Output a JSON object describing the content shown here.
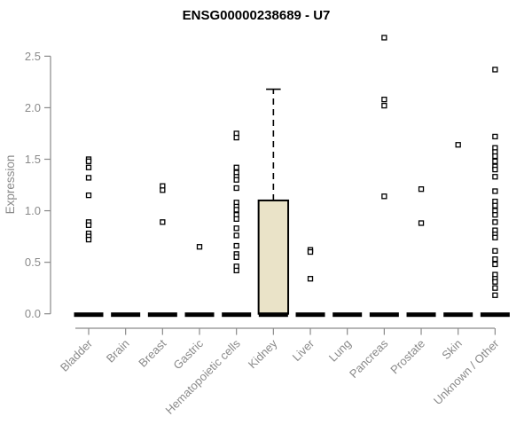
{
  "chart_data": {
    "type": "boxplot",
    "title": "ENSG00000238689 - U7",
    "ylabel": "Expression",
    "xlabel": "",
    "grid": false,
    "legend": null,
    "ylim": [
      0,
      2.72
    ],
    "yticks": [
      {
        "value": 0.0,
        "label": "0.0"
      },
      {
        "value": 0.5,
        "label": "0.5"
      },
      {
        "value": 1.0,
        "label": "1.0"
      },
      {
        "value": 1.5,
        "label": "1.5"
      },
      {
        "value": 2.0,
        "label": "2.0"
      },
      {
        "value": 2.5,
        "label": "2.5"
      }
    ],
    "categories": [
      "Bladder",
      "Brain",
      "Breast",
      "Gastric",
      "Hematopoietic cells",
      "Kidney",
      "Liver",
      "Lung",
      "Pancreas",
      "Prostate",
      "Skin",
      "Unknown / Other"
    ],
    "series": [
      {
        "name": "Bladder",
        "median": 0,
        "q1": 0,
        "q3": 0,
        "whisker_high": 0,
        "points": [
          1.5,
          1.48,
          1.42,
          1.32,
          1.15,
          0.89,
          0.86,
          0.78,
          0.75,
          0.72
        ]
      },
      {
        "name": "Brain",
        "median": 0,
        "q1": 0,
        "q3": 0,
        "whisker_high": 0,
        "points": []
      },
      {
        "name": "Breast",
        "median": 0,
        "q1": 0,
        "q3": 0,
        "whisker_high": 0,
        "points": [
          1.24,
          1.2,
          0.89
        ]
      },
      {
        "name": "Gastric",
        "median": 0,
        "q1": 0,
        "q3": 0,
        "whisker_high": 0,
        "points": [
          0.65
        ]
      },
      {
        "name": "Hematopoietic cells",
        "median": 0,
        "q1": 0,
        "q3": 0,
        "whisker_high": 0,
        "points": [
          1.75,
          1.71,
          1.42,
          1.37,
          1.33,
          1.3,
          1.22,
          1.08,
          1.04,
          1.01,
          0.96,
          0.92,
          0.83,
          0.76,
          0.66,
          0.58,
          0.55,
          0.46,
          0.42
        ]
      },
      {
        "name": "Kidney",
        "median": 0,
        "q1": 0,
        "q3": 1.1,
        "whisker_high": 2.18,
        "points": []
      },
      {
        "name": "Liver",
        "median": 0,
        "q1": 0,
        "q3": 0,
        "whisker_high": 0,
        "points": [
          0.62,
          0.6,
          0.34
        ]
      },
      {
        "name": "Lung",
        "median": 0,
        "q1": 0,
        "q3": 0,
        "whisker_high": 0,
        "points": []
      },
      {
        "name": "Pancreas",
        "median": 0,
        "q1": 0,
        "q3": 0,
        "whisker_high": 0,
        "points": [
          2.68,
          2.08,
          2.02,
          1.14
        ]
      },
      {
        "name": "Prostate",
        "median": 0,
        "q1": 0,
        "q3": 0,
        "whisker_high": 0,
        "points": [
          1.21,
          0.88
        ]
      },
      {
        "name": "Skin",
        "median": 0,
        "q1": 0,
        "q3": 0,
        "whisker_high": 0,
        "points": [
          1.64
        ]
      },
      {
        "name": "Unknown / Other",
        "median": 0,
        "q1": 0,
        "q3": 0,
        "whisker_high": 0,
        "points": [
          2.37,
          1.72,
          1.61,
          1.57,
          1.53,
          1.48,
          1.43,
          1.4,
          1.33,
          1.19,
          1.09,
          1.05,
          1.0,
          0.96,
          0.89,
          0.81,
          0.77,
          0.74,
          0.61,
          0.53,
          0.48,
          0.38,
          0.34,
          0.31,
          0.25,
          0.18
        ]
      }
    ],
    "colors": {
      "background": "#ffffff",
      "title": "#000000",
      "axis": "#8a8a8a",
      "tick_label": "#8a8a8a",
      "box_fill": "#eae3c8",
      "box_border": "#000000",
      "median_bar": "#000000",
      "point_stroke": "#000000",
      "point_fill": "#ffffff"
    }
  }
}
